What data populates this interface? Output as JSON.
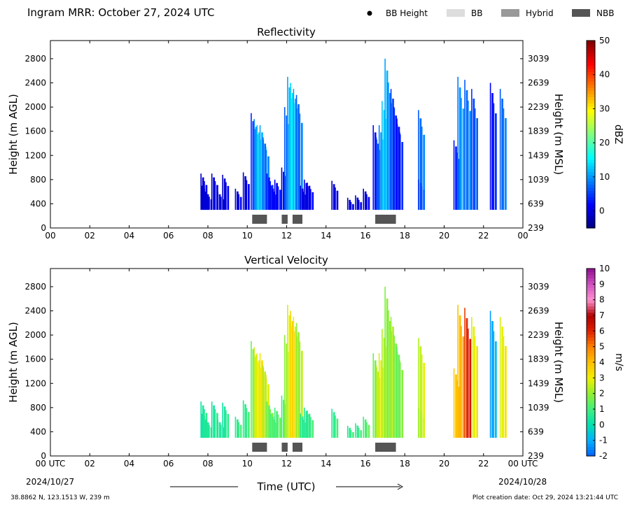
{
  "header": {
    "title": "Ingram MRR:  October 27, 2024 UTC"
  },
  "legend": {
    "placement": "top-right",
    "items": [
      {
        "label": "BB Height",
        "symbol": "dot",
        "color": "#000000"
      },
      {
        "label": "BB",
        "symbol": "rect",
        "color": "#dddddd"
      },
      {
        "label": "Hybrid",
        "symbol": "rect",
        "color": "#999999"
      },
      {
        "label": "NBB",
        "symbol": "rect",
        "color": "#555555"
      }
    ]
  },
  "footer": {
    "location": "38.8862 N, 123.1513 W, 239 m",
    "creation": "Plot creation date: Oct 29, 2024 13:21:44 UTC",
    "xlabel": "Time (UTC)",
    "start_date": "2024/10/27",
    "end_date": "2024/10/28"
  },
  "chart_data": [
    {
      "type": "heatmap",
      "title": "Reflectivity",
      "ylabel": "Height (m AGL)",
      "y2label": "Height (m MSL)",
      "xlim": [
        0,
        24
      ],
      "ylim": [
        0,
        3100
      ],
      "xticks": [
        "00",
        "02",
        "04",
        "06",
        "08",
        "10",
        "12",
        "14",
        "16",
        "18",
        "20",
        "22",
        "00"
      ],
      "yticks": [
        0,
        400,
        800,
        1200,
        1600,
        2000,
        2400,
        2800
      ],
      "y2ticks": [
        "239",
        "639",
        "1039",
        "1439",
        "1839",
        "2239",
        "2639",
        "3039"
      ],
      "colorbar": {
        "label": "dBZ",
        "range": [
          -5,
          50
        ],
        "ticks": [
          "0",
          "10",
          "20",
          "30",
          "40",
          "50"
        ],
        "tick_values": [
          0,
          10,
          20,
          30,
          40,
          50
        ],
        "colormap": [
          "#00007f",
          "#0000ff",
          "#007fff",
          "#00ffff",
          "#7fff7f",
          "#ffff00",
          "#ff7f00",
          "#ff0000",
          "#7f0000"
        ]
      },
      "echo_columns": [
        {
          "t": 7.75,
          "top": 900,
          "v": 0
        },
        {
          "t": 7.8,
          "top": 700,
          "v": 0
        },
        {
          "t": 8.0,
          "top": 600,
          "v": 0
        },
        {
          "t": 8.3,
          "top": 900,
          "v": 0
        },
        {
          "t": 8.6,
          "top": 600,
          "v": 0
        },
        {
          "t": 8.85,
          "top": 880,
          "v": 0
        },
        {
          "t": 9.5,
          "top": 650,
          "v": 0
        },
        {
          "t": 9.9,
          "top": 920,
          "v": 0
        },
        {
          "t": 10.3,
          "top": 1900,
          "v": 5
        },
        {
          "t": 10.45,
          "top": 1800,
          "v": 10
        },
        {
          "t": 10.6,
          "top": 1700,
          "v": 14
        },
        {
          "t": 10.75,
          "top": 1700,
          "v": 12
        },
        {
          "t": 10.9,
          "top": 1500,
          "v": 8
        },
        {
          "t": 11.1,
          "top": 900,
          "v": 3
        },
        {
          "t": 11.3,
          "top": 700,
          "v": 2
        },
        {
          "t": 11.5,
          "top": 800,
          "v": 2
        },
        {
          "t": 11.85,
          "top": 1000,
          "v": 1
        },
        {
          "t": 12.0,
          "top": 2000,
          "v": 8
        },
        {
          "t": 12.15,
          "top": 2500,
          "v": 12
        },
        {
          "t": 12.3,
          "top": 2400,
          "v": 15
        },
        {
          "t": 12.45,
          "top": 2300,
          "v": 12
        },
        {
          "t": 12.6,
          "top": 2200,
          "v": 8
        },
        {
          "t": 12.8,
          "top": 700,
          "v": 1
        },
        {
          "t": 13.0,
          "top": 800,
          "v": 1
        },
        {
          "t": 13.15,
          "top": 750,
          "v": 1
        },
        {
          "t": 14.4,
          "top": 780,
          "v": 0
        },
        {
          "t": 15.2,
          "top": 500,
          "v": 0
        },
        {
          "t": 15.6,
          "top": 540,
          "v": 0
        },
        {
          "t": 16.0,
          "top": 650,
          "v": 0
        },
        {
          "t": 16.5,
          "top": 1700,
          "v": 3
        },
        {
          "t": 16.65,
          "top": 1500,
          "v": 6
        },
        {
          "t": 16.8,
          "top": 1700,
          "v": 10
        },
        {
          "t": 16.95,
          "top": 2100,
          "v": 14
        },
        {
          "t": 17.1,
          "top": 2800,
          "v": 12
        },
        {
          "t": 17.25,
          "top": 2400,
          "v": 10
        },
        {
          "t": 17.4,
          "top": 2300,
          "v": 6
        },
        {
          "t": 17.55,
          "top": 2000,
          "v": 4
        },
        {
          "t": 17.7,
          "top": 1800,
          "v": 3
        },
        {
          "t": 18.8,
          "top": 1950,
          "v": 8
        },
        {
          "t": 18.8,
          "top": 800,
          "v": 6
        },
        {
          "t": 20.6,
          "top": 1450,
          "v": 4
        },
        {
          "t": 20.8,
          "top": 2500,
          "v": 10
        },
        {
          "t": 21.15,
          "top": 2450,
          "v": 8
        },
        {
          "t": 21.5,
          "top": 2300,
          "v": 6
        },
        {
          "t": 22.45,
          "top": 2400,
          "v": 3
        },
        {
          "t": 22.95,
          "top": 2300,
          "v": 8
        }
      ],
      "bright_band_segments": [
        {
          "start": 10.25,
          "end": 11.0,
          "class": "NBB"
        },
        {
          "start": 11.75,
          "end": 12.05,
          "class": "NBB"
        },
        {
          "start": 12.3,
          "end": 12.8,
          "class": "NBB"
        },
        {
          "start": 16.5,
          "end": 17.55,
          "class": "NBB"
        }
      ]
    },
    {
      "type": "heatmap",
      "title": "Vertical Velocity",
      "ylabel": "Height (m AGL)",
      "y2label": "Height (m MSL)",
      "xlim": [
        0,
        24
      ],
      "ylim": [
        0,
        3100
      ],
      "xticks": [
        "00 UTC",
        "02",
        "04",
        "06",
        "08",
        "10",
        "12",
        "14",
        "16",
        "18",
        "20",
        "22",
        "00 UTC"
      ],
      "yticks": [
        0,
        400,
        800,
        1200,
        1600,
        2000,
        2400,
        2800
      ],
      "y2ticks": [
        "239",
        "639",
        "1039",
        "1439",
        "1839",
        "2239",
        "2639",
        "3039"
      ],
      "colorbar": {
        "label": "m/s",
        "range": [
          -2,
          10
        ],
        "ticks": [
          "-2",
          "-1",
          "0",
          "1",
          "2",
          "3",
          "4",
          "5",
          "6",
          "7",
          "8",
          "9",
          "10"
        ],
        "tick_values": [
          -2,
          -1,
          0,
          1,
          2,
          3,
          4,
          5,
          6,
          7,
          8,
          9,
          10
        ],
        "colormap": [
          "#0060ff",
          "#00b0ff",
          "#00e0b0",
          "#40f080",
          "#90f030",
          "#f0f000",
          "#ffc000",
          "#ff8000",
          "#e02000",
          "#b00000",
          "#ff90d0",
          "#d050c0",
          "#901090"
        ]
      },
      "echo_columns": [
        {
          "t": 7.75,
          "top": 900,
          "v": 0.5
        },
        {
          "t": 7.8,
          "top": 700,
          "v": 0.5
        },
        {
          "t": 8.0,
          "top": 600,
          "v": 0.5
        },
        {
          "t": 8.3,
          "top": 900,
          "v": 0.5
        },
        {
          "t": 8.6,
          "top": 600,
          "v": 0.5
        },
        {
          "t": 8.85,
          "top": 880,
          "v": 0.5
        },
        {
          "t": 9.5,
          "top": 650,
          "v": 0.8
        },
        {
          "t": 9.9,
          "top": 920,
          "v": 0.8
        },
        {
          "t": 10.3,
          "top": 1900,
          "v": 1.8
        },
        {
          "t": 10.45,
          "top": 1800,
          "v": 2.8
        },
        {
          "t": 10.6,
          "top": 1700,
          "v": 3.2
        },
        {
          "t": 10.75,
          "top": 1700,
          "v": 3.5
        },
        {
          "t": 10.9,
          "top": 1500,
          "v": 2.5
        },
        {
          "t": 11.1,
          "top": 900,
          "v": 1.5
        },
        {
          "t": 11.3,
          "top": 700,
          "v": 1.2
        },
        {
          "t": 11.5,
          "top": 800,
          "v": 1.2
        },
        {
          "t": 11.85,
          "top": 1000,
          "v": 1.2
        },
        {
          "t": 12.0,
          "top": 2000,
          "v": 2.2
        },
        {
          "t": 12.15,
          "top": 2500,
          "v": 3.0
        },
        {
          "t": 12.3,
          "top": 2400,
          "v": 3.8
        },
        {
          "t": 12.45,
          "top": 2300,
          "v": 3.2
        },
        {
          "t": 12.6,
          "top": 2200,
          "v": 2.2
        },
        {
          "t": 12.8,
          "top": 700,
          "v": 0.8
        },
        {
          "t": 13.0,
          "top": 800,
          "v": 0.8
        },
        {
          "t": 13.15,
          "top": 750,
          "v": 0.8
        },
        {
          "t": 14.4,
          "top": 780,
          "v": 0.8
        },
        {
          "t": 15.2,
          "top": 500,
          "v": 0.8
        },
        {
          "t": 15.6,
          "top": 540,
          "v": 0.8
        },
        {
          "t": 16.0,
          "top": 650,
          "v": 1.2
        },
        {
          "t": 16.5,
          "top": 1700,
          "v": 1.8
        },
        {
          "t": 16.65,
          "top": 1500,
          "v": 2.6
        },
        {
          "t": 16.8,
          "top": 1700,
          "v": 3.0
        },
        {
          "t": 16.95,
          "top": 2100,
          "v": 2.6
        },
        {
          "t": 17.1,
          "top": 2800,
          "v": 2.0
        },
        {
          "t": 17.25,
          "top": 2400,
          "v": 2.0
        },
        {
          "t": 17.4,
          "top": 2300,
          "v": 2.4
        },
        {
          "t": 17.55,
          "top": 2000,
          "v": 1.8
        },
        {
          "t": 17.7,
          "top": 1800,
          "v": 1.6
        },
        {
          "t": 18.8,
          "top": 1950,
          "v": 2.6
        },
        {
          "t": 18.8,
          "top": 800,
          "v": 2.4
        },
        {
          "t": 20.6,
          "top": 1450,
          "v": 4.0
        },
        {
          "t": 20.8,
          "top": 2500,
          "v": 4.2
        },
        {
          "t": 21.15,
          "top": 2450,
          "v": 6.0
        },
        {
          "t": 21.5,
          "top": 2300,
          "v": 3.0
        },
        {
          "t": 22.45,
          "top": 2400,
          "v": -1.0
        },
        {
          "t": 22.95,
          "top": 2300,
          "v": 3.0
        }
      ],
      "bright_band_segments": [
        {
          "start": 10.25,
          "end": 11.0,
          "class": "NBB"
        },
        {
          "start": 11.75,
          "end": 12.05,
          "class": "NBB"
        },
        {
          "start": 12.3,
          "end": 12.8,
          "class": "NBB"
        },
        {
          "start": 16.5,
          "end": 17.55,
          "class": "NBB"
        }
      ]
    }
  ]
}
